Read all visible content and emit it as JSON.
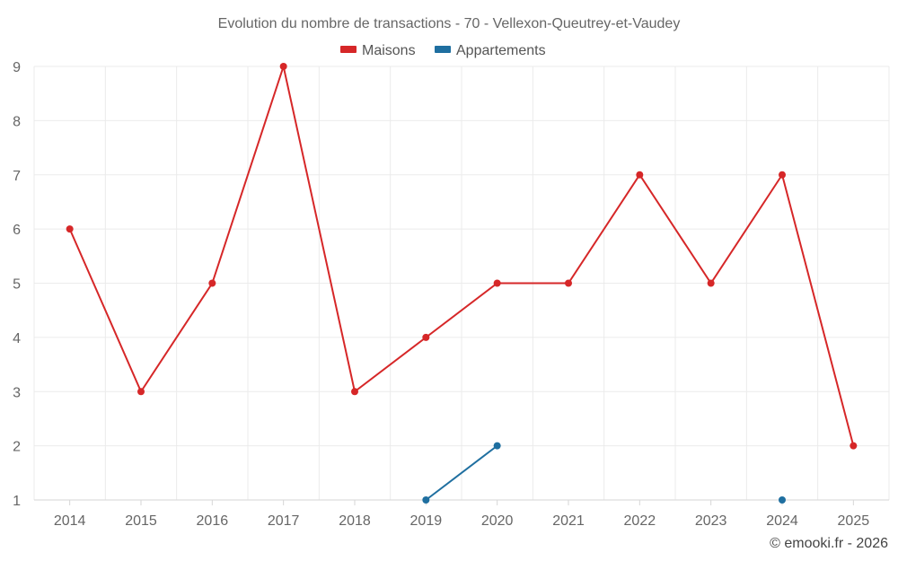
{
  "chart_data": {
    "type": "line",
    "title": "Evolution du nombre de transactions - 70 - Vellexon-Queutrey-et-Vaudey",
    "xlabel": "",
    "ylabel": "",
    "categories": [
      "2014",
      "2015",
      "2016",
      "2017",
      "2018",
      "2019",
      "2020",
      "2021",
      "2022",
      "2023",
      "2024",
      "2025"
    ],
    "ylim": [
      1,
      9
    ],
    "yticks": [
      "1",
      "2",
      "3",
      "4",
      "5",
      "6",
      "7",
      "8",
      "9"
    ],
    "grid": true,
    "legend_position": "top-center",
    "series": [
      {
        "name": "Maisons",
        "color": "#d62728",
        "values": [
          6,
          3,
          5,
          9,
          3,
          4,
          5,
          5,
          7,
          5,
          7,
          2
        ]
      },
      {
        "name": "Appartements",
        "color": "#1f6fa0",
        "values": [
          null,
          null,
          null,
          null,
          null,
          1,
          2,
          null,
          null,
          null,
          1,
          null
        ]
      }
    ]
  },
  "credit": "© emooki.fr - 2026"
}
